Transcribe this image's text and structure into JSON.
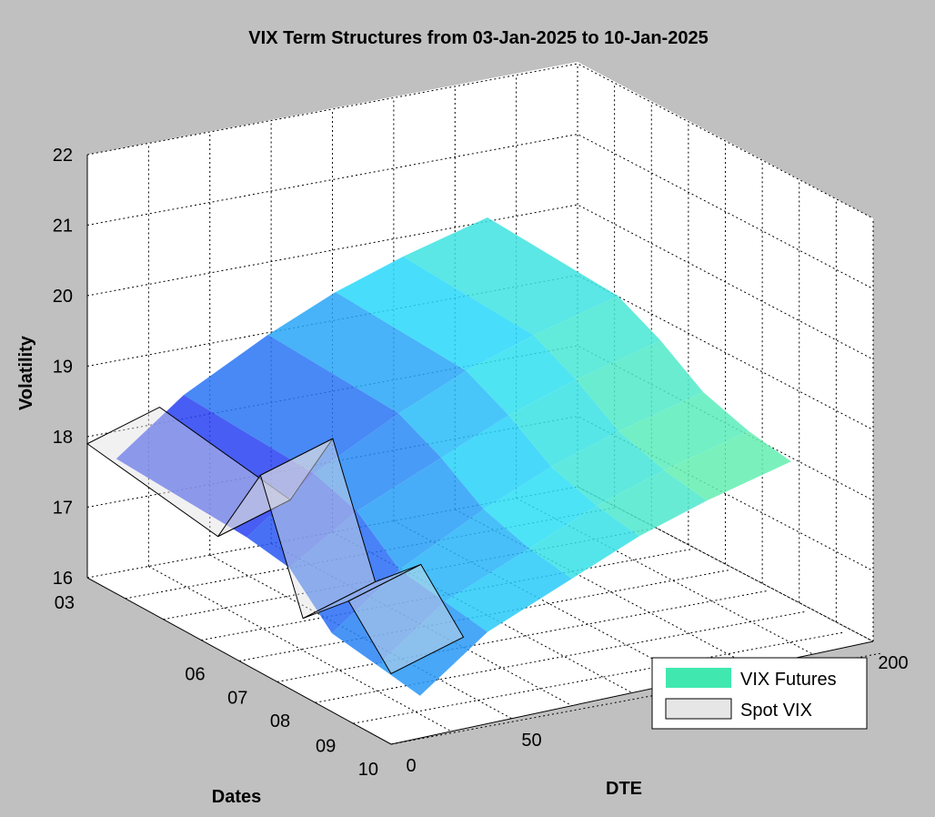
{
  "chart_data": {
    "type": "surface3d",
    "title": "VIX Term Structures from 03-Jan-2025 to 10-Jan-2025",
    "xlabel": "DTE",
    "ylabel": "Dates",
    "zlabel": "Volatility",
    "x_ticks": [
      "0",
      "50",
      "200"
    ],
    "y_ticks": [
      "03",
      "06",
      "07",
      "08",
      "09",
      "10"
    ],
    "z_ticks": [
      "16",
      "17",
      "18",
      "19",
      "20",
      "21",
      "22"
    ],
    "xlim": [
      0,
      200
    ],
    "zlim": [
      16,
      22
    ],
    "grid": true,
    "legend_position": "bottom-right",
    "dates": [
      "03",
      "06",
      "07",
      "08",
      "09",
      "10"
    ],
    "series": [
      {
        "name": "VIX Futures",
        "color": "#40e8b0",
        "dte": [
          12,
          40,
          75,
          103,
          131,
          166
        ],
        "values_by_date": [
          [
            17.6,
            18.3,
            18.9,
            19.3,
            19.6,
            19.9
          ],
          [
            17.5,
            18.2,
            18.8,
            19.2,
            19.5,
            19.8
          ],
          [
            17.4,
            18.0,
            18.5,
            18.9,
            19.2,
            19.5
          ],
          [
            16.8,
            17.5,
            18.1,
            18.5,
            18.8,
            19.1
          ],
          [
            16.7,
            17.4,
            17.9,
            18.3,
            18.6,
            18.9
          ],
          [
            16.6,
            17.3,
            17.8,
            18.2,
            18.5,
            18.8
          ]
        ]
      },
      {
        "name": "Spot VIX",
        "color": "#e0e0e0",
        "dte": [
          0
        ],
        "values_by_date": [
          [
            17.9
          ],
          [
            17.6
          ],
          [
            18.8
          ],
          [
            17.1
          ],
          [
            17.7
          ],
          [
            17.0
          ]
        ]
      }
    ]
  },
  "legend": {
    "items": [
      {
        "label": "VIX Futures",
        "color": "#40e8b0"
      },
      {
        "label": "Spot VIX",
        "color": "#e0e0e0"
      }
    ]
  }
}
